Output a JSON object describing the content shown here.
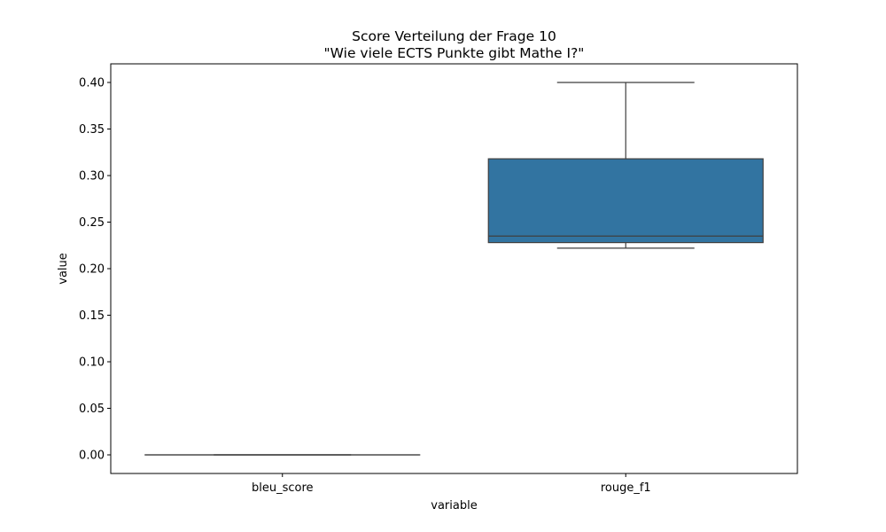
{
  "chart_data": {
    "type": "box",
    "title_line1": "Score Verteilung der Frage 10",
    "title_line2": "\"Wie viele ECTS Punkte gibt Mathe I?\"",
    "xlabel": "variable",
    "ylabel": "value",
    "ylim": [
      -0.02,
      0.42
    ],
    "yticks": [
      {
        "value": 0.0,
        "label": "0.00"
      },
      {
        "value": 0.05,
        "label": "0.05"
      },
      {
        "value": 0.1,
        "label": "0.10"
      },
      {
        "value": 0.15,
        "label": "0.15"
      },
      {
        "value": 0.2,
        "label": "0.20"
      },
      {
        "value": 0.25,
        "label": "0.25"
      },
      {
        "value": 0.3,
        "label": "0.30"
      },
      {
        "value": 0.35,
        "label": "0.35"
      },
      {
        "value": 0.4,
        "label": "0.40"
      }
    ],
    "categories": [
      "bleu_score",
      "rouge_f1"
    ],
    "boxes": [
      {
        "category": "bleu_score",
        "whisker_low": 0.0,
        "q1": 0.0,
        "median": 0.0,
        "q3": 0.0,
        "whisker_high": 0.0
      },
      {
        "category": "rouge_f1",
        "whisker_low": 0.222,
        "q1": 0.228,
        "median": 0.235,
        "q3": 0.318,
        "whisker_high": 0.4
      }
    ],
    "box_color": "#3274a1",
    "line_color": "#3f3f3f",
    "grid": false,
    "legend": "none"
  }
}
